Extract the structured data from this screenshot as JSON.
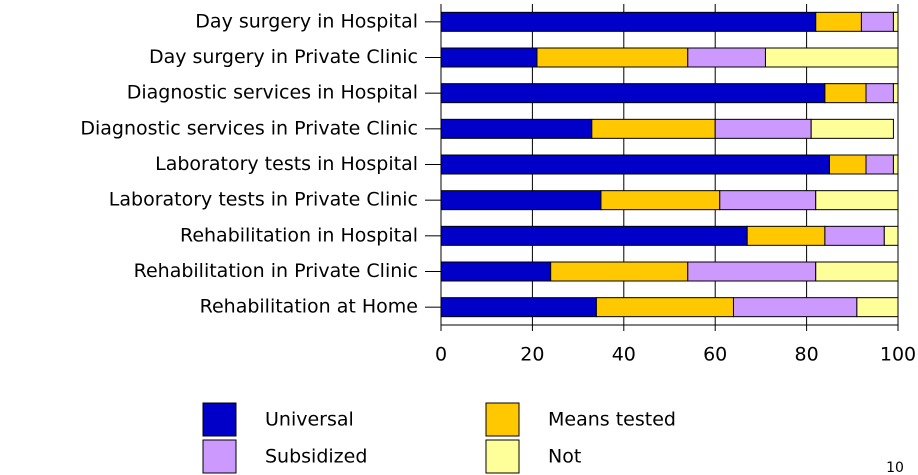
{
  "chart_data": {
    "type": "stacked-barh",
    "categories": [
      "Day surgery in Hospital",
      "Day surgery in Private Clinic",
      "Diagnostic services in Hospital",
      "Diagnostic services in Private Clinic",
      "Laboratory tests in Hospital",
      "Laboratory tests in Private Clinic",
      "Rehabilitation in Hospital",
      "Rehabilitation in Private Clinic",
      "Rehabilitation at Home"
    ],
    "series": [
      {
        "name": "Universal",
        "color": "#0000c8",
        "values": [
          82,
          21,
          84,
          33,
          85,
          35,
          67,
          24,
          34
        ]
      },
      {
        "name": "Means tested",
        "color": "#ffc800",
        "values": [
          10,
          33,
          9,
          27,
          8,
          26,
          17,
          30,
          30
        ]
      },
      {
        "name": "Subsidized",
        "color": "#cc99ff",
        "values": [
          7,
          17,
          6,
          21,
          6,
          21,
          13,
          28,
          27
        ]
      },
      {
        "name": "Not",
        "color": "#ffff99",
        "values": [
          1,
          29,
          1,
          18,
          1,
          18,
          3,
          18,
          9
        ]
      }
    ],
    "xlim": [
      0,
      100
    ],
    "xticks": [
      0,
      20,
      40,
      60,
      80,
      100
    ],
    "grid": true,
    "page_number": "10"
  }
}
